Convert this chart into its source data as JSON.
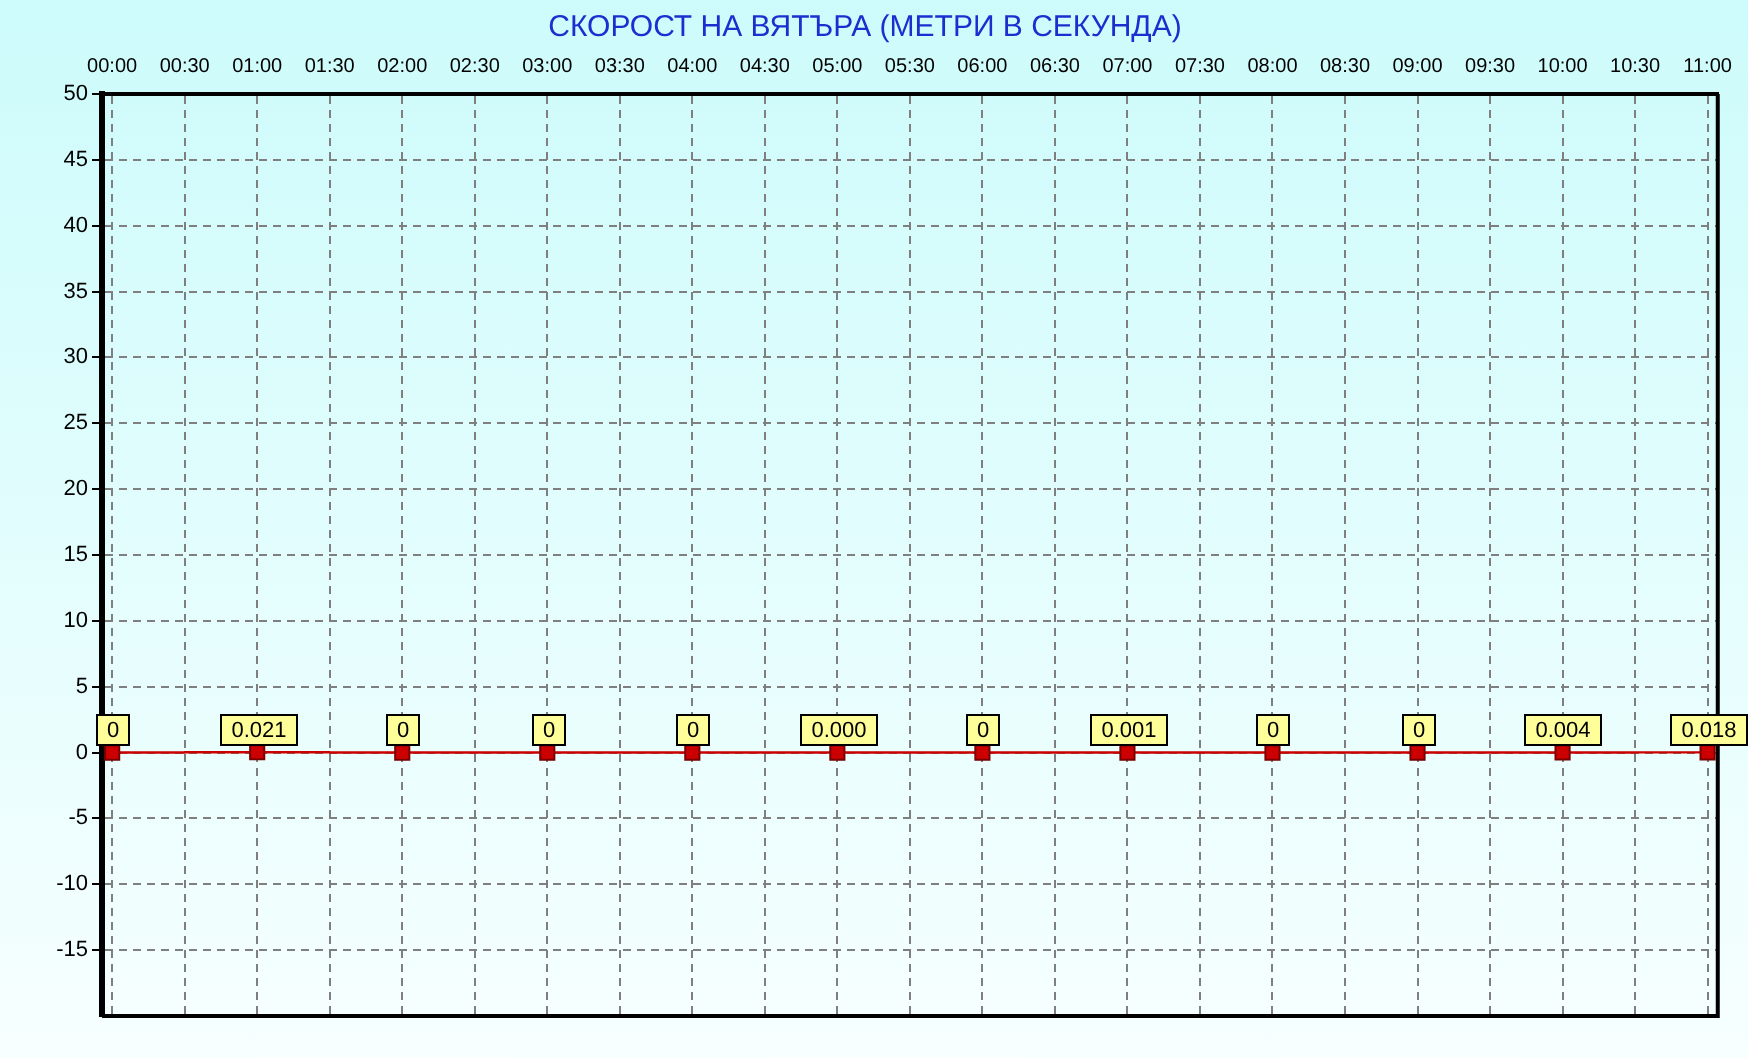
{
  "chart_data": {
    "type": "step",
    "title": "СКОРОСТ НА ВЯТЪРА (МЕТРИ В СЕКУНДА)",
    "x": [
      0,
      1,
      2,
      3,
      4,
      5,
      6,
      7,
      8,
      9,
      10,
      11
    ],
    "series": [
      {
        "color": "#cc0000",
        "values": [
          0,
          0.021,
          0,
          0,
          0,
          0,
          0,
          0.001,
          0,
          0,
          0.004,
          0.018
        ],
        "value_labels": [
          "0",
          "0.021",
          "0",
          "0",
          "0",
          "0.000",
          "0",
          "0.001",
          "0",
          "0",
          "0.004",
          "0.018"
        ]
      }
    ],
    "xlim": [
      -0.07,
      11.07
    ],
    "xticks": [
      {
        "value": 0,
        "label": "00:00"
      },
      {
        "value": 0.5,
        "label": "00:30"
      },
      {
        "value": 1,
        "label": "01:00"
      },
      {
        "value": 1.5,
        "label": "01:30"
      },
      {
        "value": 2,
        "label": "02:00"
      },
      {
        "value": 2.5,
        "label": "02:30"
      },
      {
        "value": 3,
        "label": "03:00"
      },
      {
        "value": 3.5,
        "label": "03:30"
      },
      {
        "value": 4,
        "label": "04:00"
      },
      {
        "value": 4.5,
        "label": "04:30"
      },
      {
        "value": 5,
        "label": "05:00"
      },
      {
        "value": 5.5,
        "label": "05:30"
      },
      {
        "value": 6,
        "label": "06:00"
      },
      {
        "value": 6.5,
        "label": "06:30"
      },
      {
        "value": 7,
        "label": "07:00"
      },
      {
        "value": 7.5,
        "label": "07:30"
      },
      {
        "value": 8,
        "label": "08:00"
      },
      {
        "value": 8.5,
        "label": "08:30"
      },
      {
        "value": 9,
        "label": "09:00"
      },
      {
        "value": 9.5,
        "label": "09:30"
      },
      {
        "value": 10,
        "label": "10:00"
      },
      {
        "value": 10.5,
        "label": "10:30"
      },
      {
        "value": 11,
        "label": "11:00"
      }
    ],
    "ylim": [
      -20,
      50
    ],
    "yticks": [
      -15,
      -10,
      -5,
      0,
      5,
      10,
      15,
      20,
      25,
      30,
      35,
      40,
      45,
      50
    ],
    "grid": true,
    "marker": "square",
    "line_style": "solid"
  }
}
